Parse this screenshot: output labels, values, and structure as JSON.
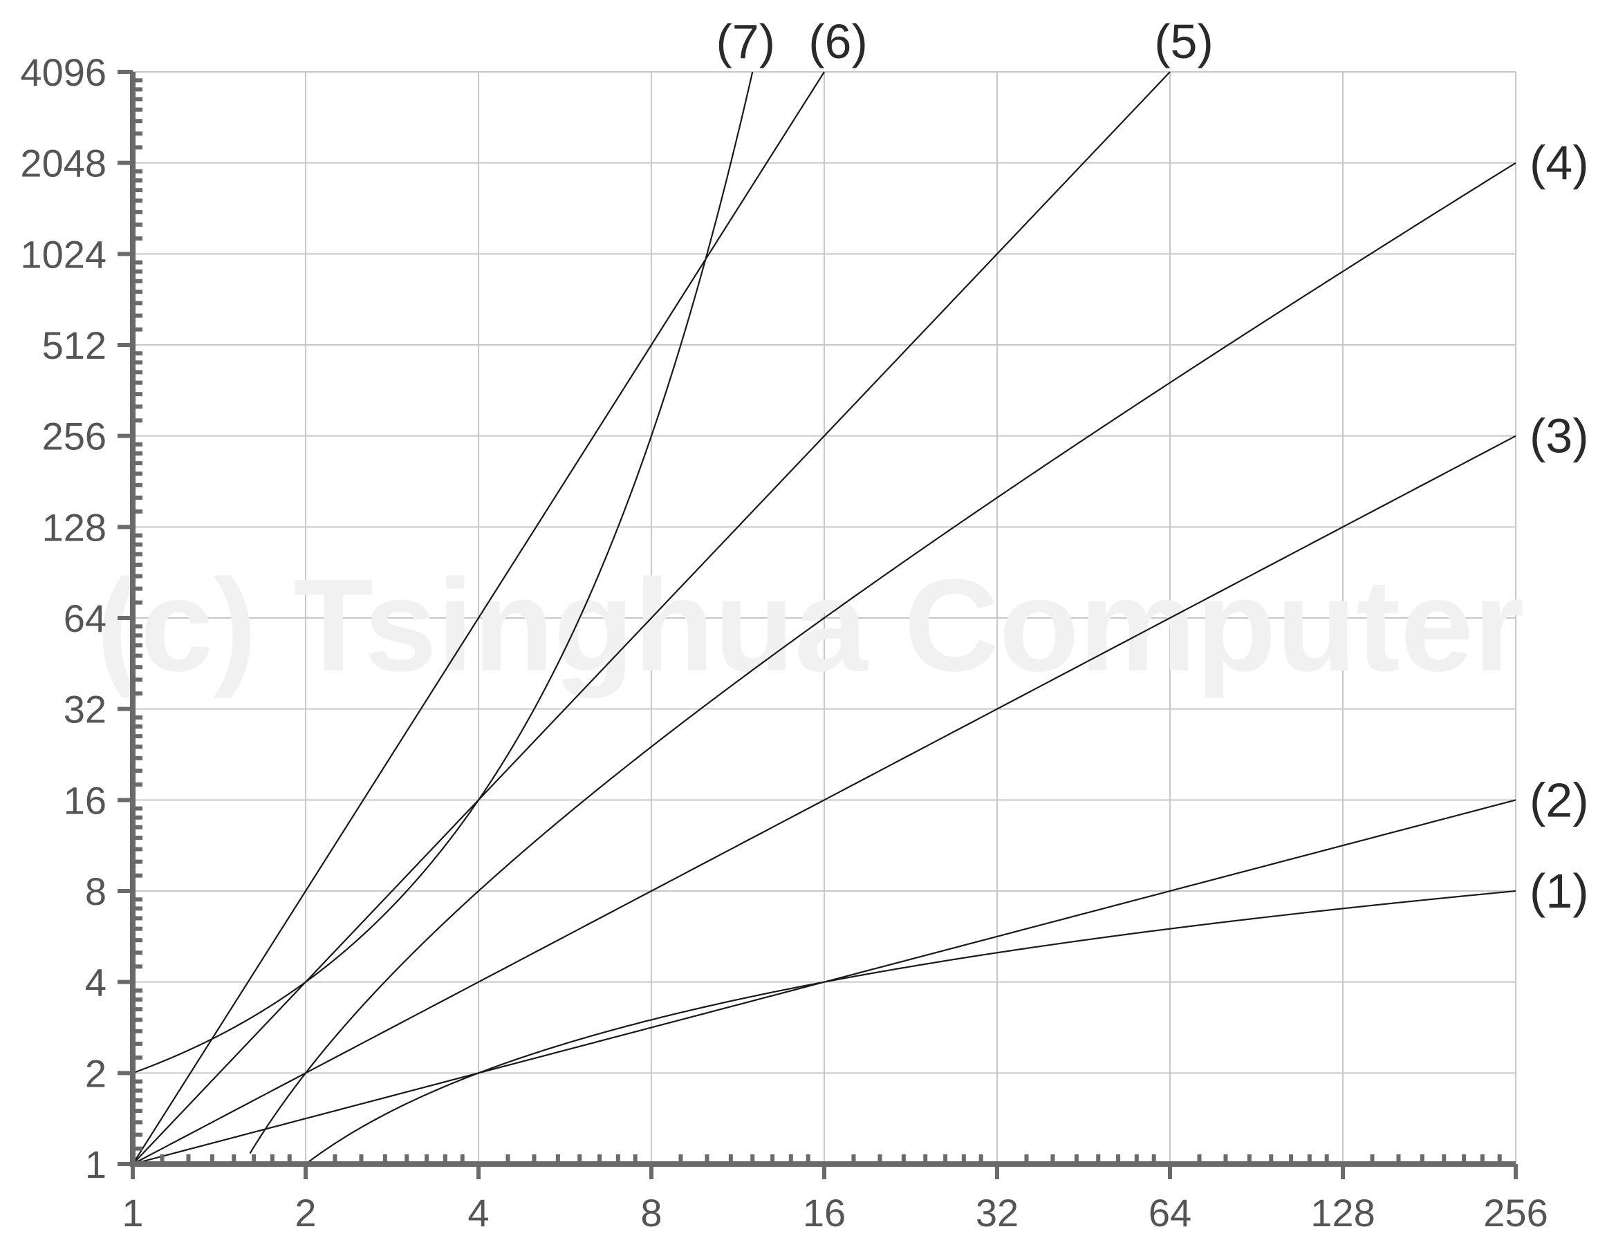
{
  "chart_data": {
    "type": "line",
    "title": "",
    "xlabel": "",
    "ylabel": "",
    "x_scale": "log2",
    "y_scale": "log2",
    "xlim": [
      1,
      256
    ],
    "ylim": [
      1,
      4096
    ],
    "x_ticks": [
      "1",
      "2",
      "4",
      "8",
      "16",
      "32",
      "64",
      "128",
      "256"
    ],
    "y_ticks": [
      "1",
      "2",
      "4",
      "8",
      "16",
      "32",
      "64",
      "128",
      "256",
      "512",
      "1024",
      "2048",
      "4096"
    ],
    "grid": true,
    "watermark": "(c) Tsinghua Computer",
    "series": [
      {
        "label": "(1)",
        "formula": "log2(n)",
        "x_start": 2,
        "x_end": 256,
        "end_value": 8
      },
      {
        "label": "(2)",
        "formula": "sqrt(n)",
        "x_start": 1,
        "x_end": 256,
        "end_value": 16
      },
      {
        "label": "(3)",
        "formula": "n",
        "x_start": 1,
        "x_end": 256,
        "end_value": 256
      },
      {
        "label": "(4)",
        "formula": "n*log2(n)",
        "x_start": 1.6,
        "x_end": 256,
        "end_value": 2048
      },
      {
        "label": "(5)",
        "formula": "n^2",
        "x_start": 1,
        "x_end": 64,
        "end_value": 4096
      },
      {
        "label": "(6)",
        "formula": "n^3",
        "x_start": 1,
        "x_end": 16,
        "end_value": 4096
      },
      {
        "label": "(7)",
        "formula": "2^n",
        "x_start": 1,
        "x_end": 12,
        "end_value": 4096
      }
    ]
  }
}
